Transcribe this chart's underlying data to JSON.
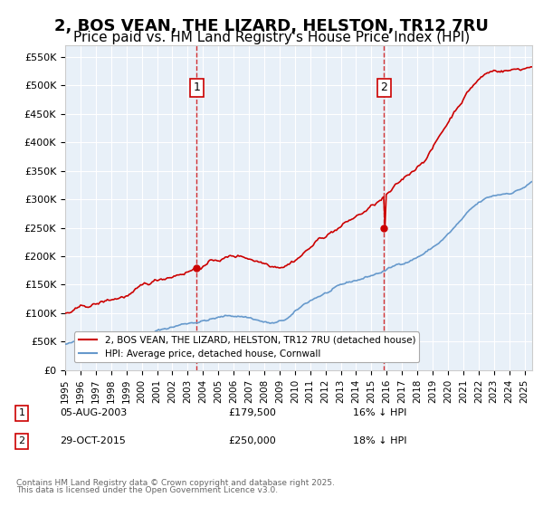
{
  "title": "2, BOS VEAN, THE LIZARD, HELSTON, TR12 7RU",
  "subtitle": "Price paid vs. HM Land Registry's House Price Index (HPI)",
  "title_fontsize": 13,
  "subtitle_fontsize": 11,
  "background_color": "#ffffff",
  "plot_background": "#e8f0f8",
  "grid_color": "#ffffff",
  "red_line_color": "#cc0000",
  "blue_line_color": "#6699cc",
  "marker_color": "#cc0000",
  "sale1_date_num": 2003.59,
  "sale1_price": 179500,
  "sale2_date_num": 2015.83,
  "sale2_price": 250000,
  "vline_color": "#cc0000",
  "annotation_box_color": "#ffffff",
  "annotation_border_color": "#cc0000",
  "ylim": [
    0,
    570000
  ],
  "xlim_start": 1995,
  "xlim_end": 2025.5,
  "ytick_step": 50000,
  "legend_label_red": "2, BOS VEAN, THE LIZARD, HELSTON, TR12 7RU (detached house)",
  "legend_label_blue": "HPI: Average price, detached house, Cornwall",
  "footer_line1": "Contains HM Land Registry data © Crown copyright and database right 2025.",
  "footer_line2": "This data is licensed under the Open Government Licence v3.0.",
  "table_row1": [
    "1",
    "05-AUG-2003",
    "£179,500",
    "16% ↓ HPI"
  ],
  "table_row2": [
    "2",
    "29-OCT-2015",
    "£250,000",
    "18% ↓ HPI"
  ]
}
